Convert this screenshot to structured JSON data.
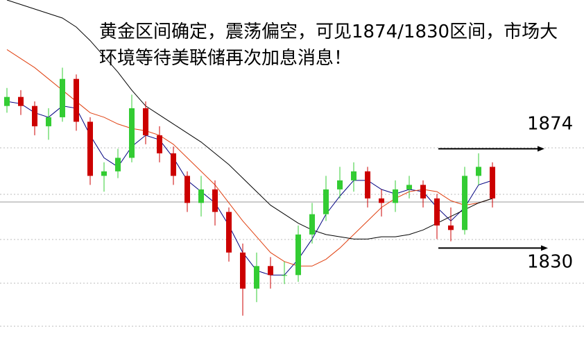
{
  "chart_data": {
    "type": "candlestick",
    "title": [
      "黄金区间确定，震荡偏空，可见1874/1830区间，市场大",
      "环境等待美联储再次加息消息！"
    ],
    "categories": [
      null,
      null,
      null,
      null,
      null,
      null,
      null,
      null,
      null,
      null,
      null,
      null,
      null,
      null,
      null,
      null,
      null,
      null,
      null,
      null,
      null,
      null,
      null,
      null,
      null,
      null,
      null,
      null,
      null,
      null,
      null,
      null,
      null,
      null,
      null,
      null
    ],
    "ylim": [
      1783,
      1940
    ],
    "up_color": "#33cc33",
    "down_color": "#cc0000",
    "open": [
      1893,
      1897,
      1893,
      1884,
      1888,
      1905,
      1886,
      1862,
      1864,
      1870,
      1892,
      1880,
      1872,
      1862,
      1850,
      1856,
      1846,
      1828,
      1812,
      1822,
      1818,
      1818,
      1836,
      1845,
      1856,
      1860,
      1864,
      1852,
      1850,
      1856,
      1858,
      1852,
      1840,
      1838,
      1862,
      1866
    ],
    "high": [
      1901,
      1900,
      1895,
      1892,
      1910,
      1907,
      1888,
      1868,
      1874,
      1898,
      1895,
      1884,
      1875,
      1864,
      1862,
      1860,
      1848,
      1832,
      1828,
      1826,
      1824,
      1840,
      1850,
      1862,
      1866,
      1868,
      1866,
      1856,
      1860,
      1862,
      1860,
      1854,
      1848,
      1866,
      1872,
      1868
    ],
    "low": [
      1890,
      1889,
      1880,
      1878,
      1886,
      1882,
      1858,
      1855,
      1861,
      1868,
      1876,
      1868,
      1858,
      1846,
      1844,
      1840,
      1824,
      1800,
      1806,
      1812,
      1814,
      1815,
      1832,
      1842,
      1852,
      1855,
      1848,
      1844,
      1846,
      1852,
      1848,
      1834,
      1833,
      1836,
      1858,
      1848
    ],
    "close": [
      1897,
      1893,
      1884,
      1888,
      1905,
      1886,
      1862,
      1864,
      1870,
      1892,
      1880,
      1872,
      1862,
      1850,
      1856,
      1846,
      1828,
      1812,
      1822,
      1818,
      1818,
      1836,
      1845,
      1856,
      1860,
      1864,
      1852,
      1850,
      1856,
      1858,
      1852,
      1840,
      1838,
      1862,
      1866,
      1852
    ],
    "lines": [
      {
        "color": "#000080",
        "values": [
          1895,
          1894,
          1890,
          1888,
          1893,
          1892,
          1880,
          1870,
          1866,
          1875,
          1880,
          1878,
          1870,
          1860,
          1855,
          1850,
          1840,
          1828,
          1820,
          1818,
          1818,
          1825,
          1834,
          1845,
          1853,
          1860,
          1860,
          1856,
          1854,
          1856,
          1855,
          1848,
          1842,
          1848,
          1858,
          1860
        ]
      },
      {
        "color": "#e04010",
        "values": [
          1918,
          1914,
          1910,
          1905,
          1900,
          1895,
          1890,
          1888,
          1885,
          1883,
          1882,
          1880,
          1876,
          1870,
          1864,
          1858,
          1850,
          1842,
          1835,
          1828,
          1824,
          1822,
          1822,
          1825,
          1830,
          1836,
          1842,
          1848,
          1852,
          1855,
          1856,
          1855,
          1851,
          1849,
          1850,
          1852
        ]
      },
      {
        "color": "#000000",
        "values": [
          1940,
          1938,
          1936,
          1934,
          1932,
          1928,
          1922,
          1915,
          1908,
          1900,
          1893,
          1889,
          1885,
          1881,
          1877,
          1872,
          1867,
          1861,
          1855,
          1849,
          1845,
          1841,
          1838,
          1836,
          1835,
          1834,
          1834,
          1835,
          1835,
          1836,
          1838,
          1841,
          1844,
          1847,
          1850,
          1852
        ]
      }
    ],
    "annotations": [
      1874,
      1830
    ]
  }
}
